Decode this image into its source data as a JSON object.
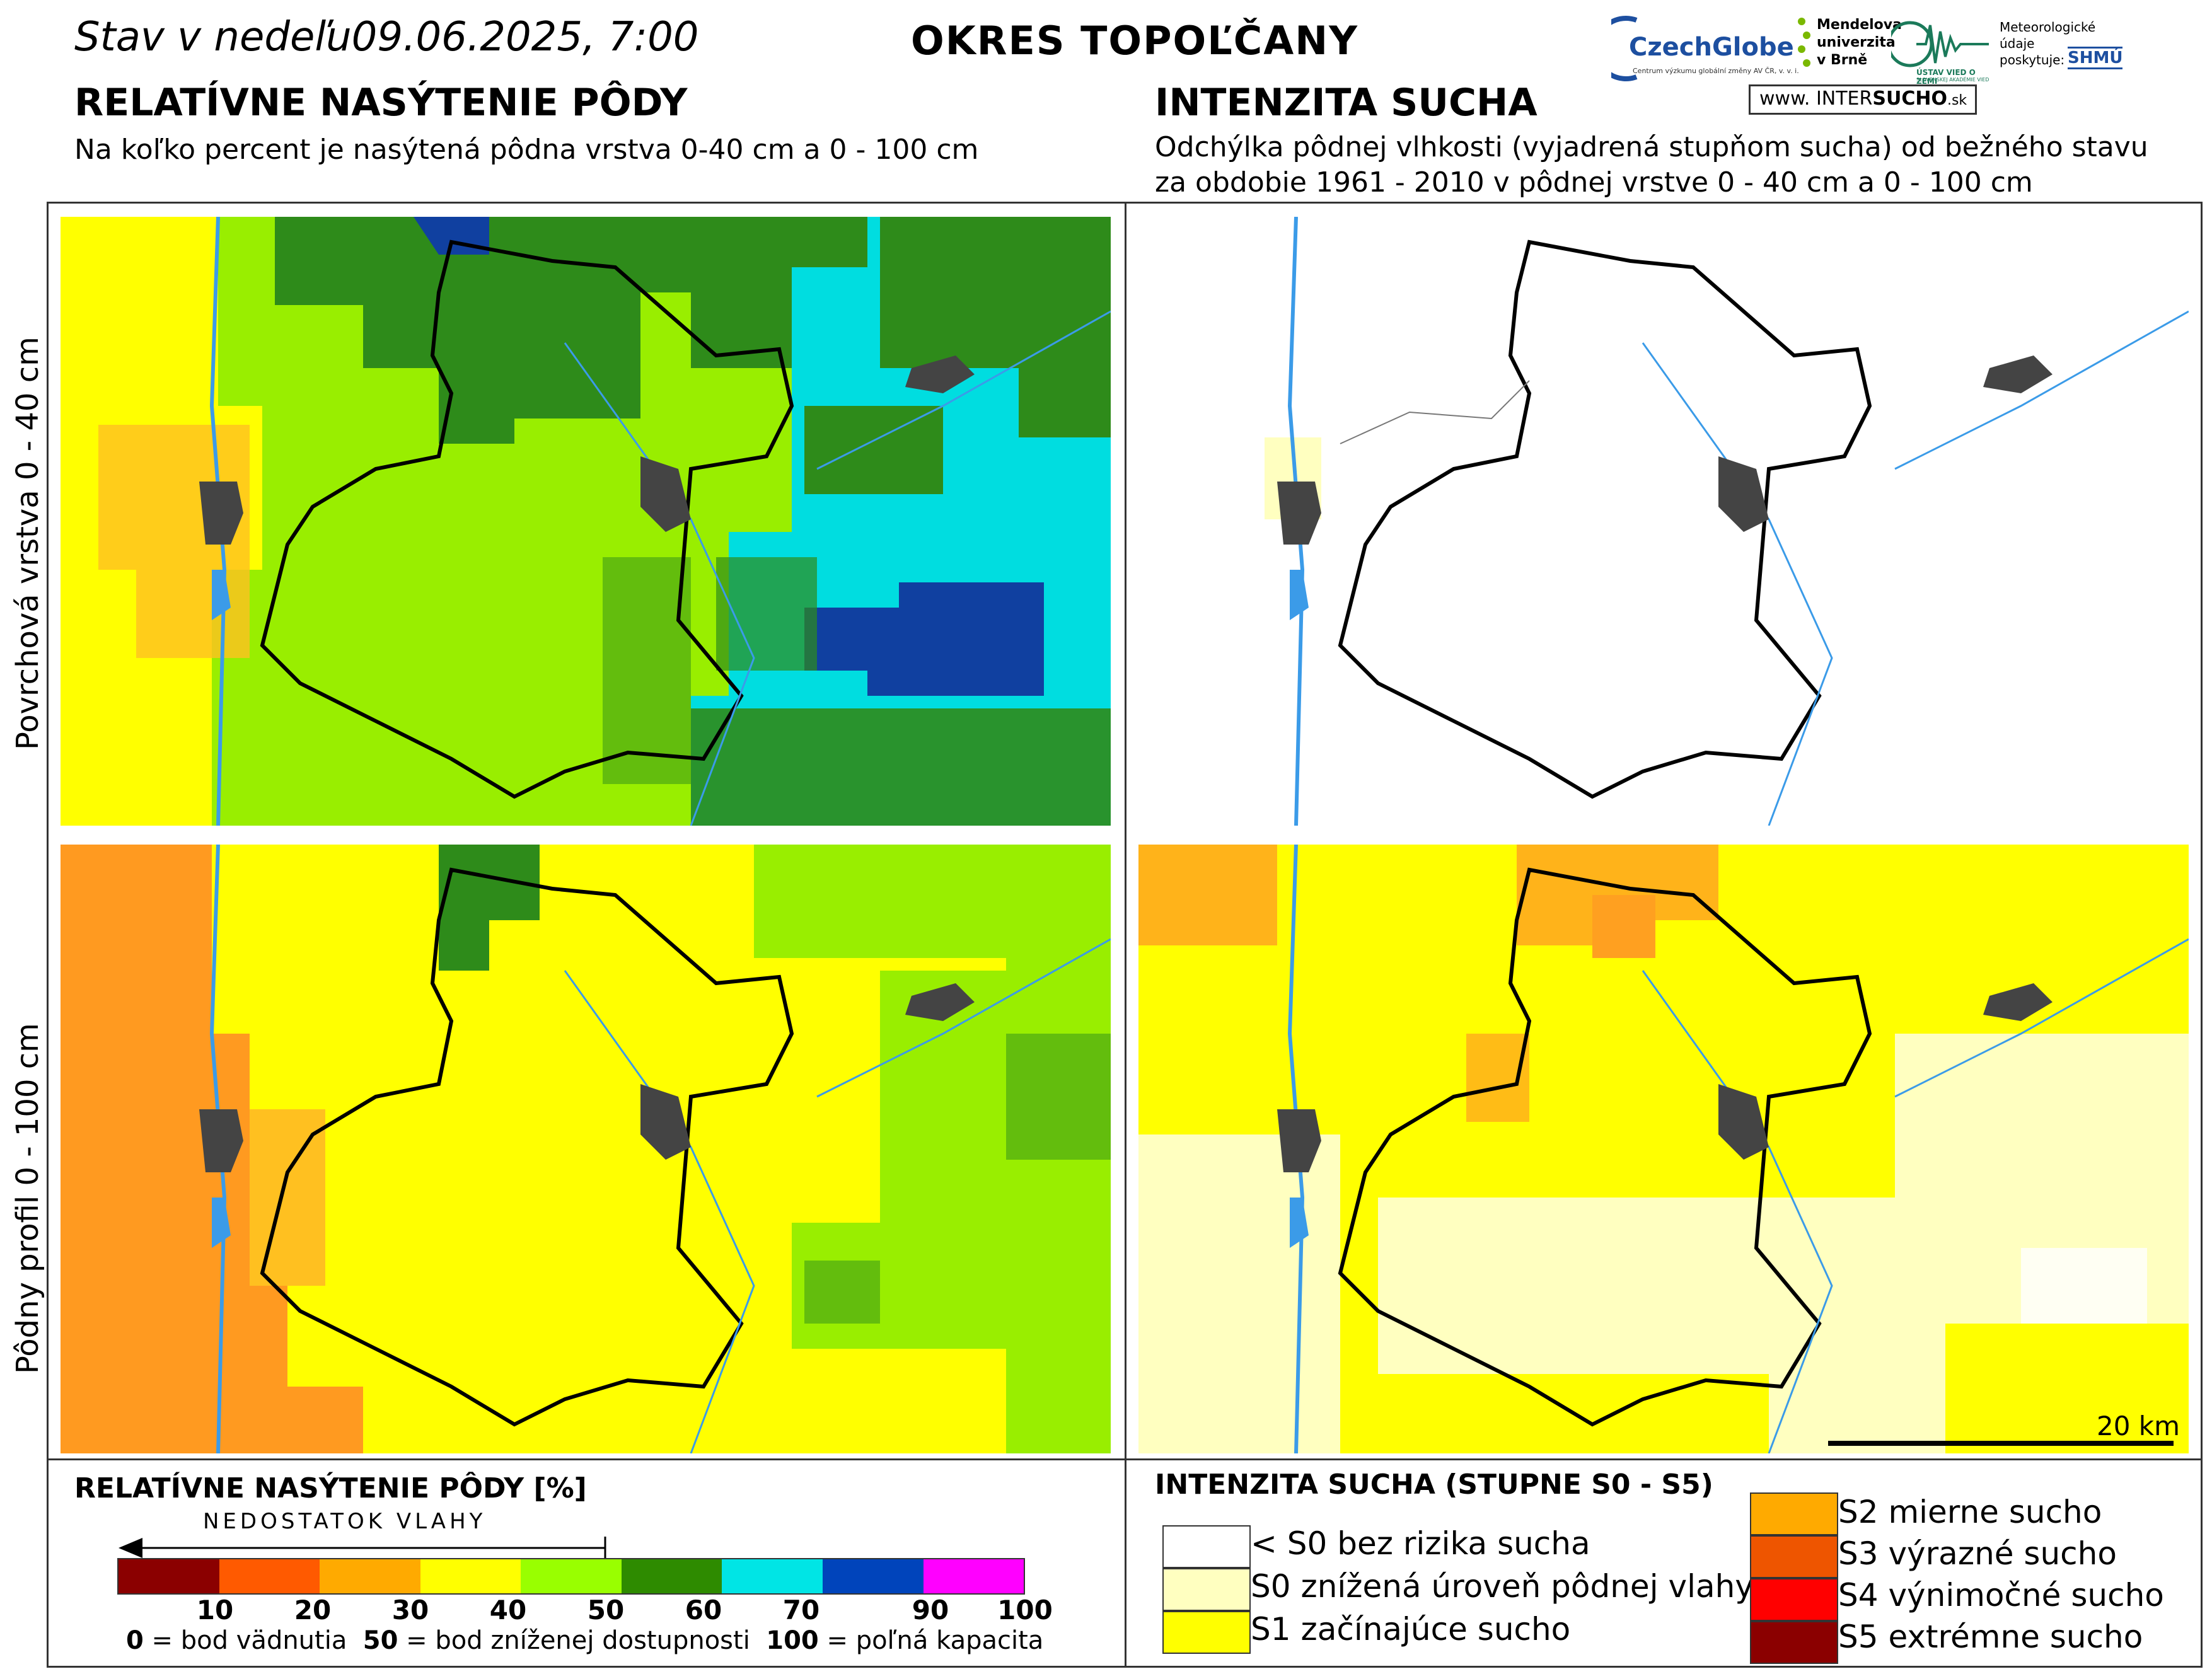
{
  "header": {
    "date": "Stav v nedeľu09.06.2025, 7:00",
    "district": "OKRES  TOPOĽČANY"
  },
  "left": {
    "title": "RELATÍVNE NASÝTENIE PÔDY",
    "subtitle": "Na koľko percent je nasýtená pôdna vrstva 0-40 cm a 0 - 100 cm"
  },
  "right": {
    "title": "INTENZITA SUCHA",
    "subtitle_line1": "Odchýlka pôdnej vlhkosti (vyjadrená stupňom sucha) od bežného stavu",
    "subtitle_line2": "za obdobie 1961 - 2010 v pôdnej vrstve 0 - 40 cm a 0 - 100 cm"
  },
  "rows": {
    "top": "Povrchová vrstva 0 - 40 cm",
    "bottom": "Pôdny profil 0 - 100 cm"
  },
  "scalebar": "20 km",
  "logos": {
    "czechglobe": "CzechGlobe",
    "czechglobe_sub": "Centrum výzkumu globální změny AV ČR, v. v. i.",
    "mendel_1": "Mendelova",
    "mendel_2": "univerzita",
    "mendel_3": "v Brně",
    "uvz": "ÚSTAV VIED O ZEMI",
    "uvz_sub": "SLOVENSKEJ AKADÉMIE VIED",
    "meteo_1": "Meteorologické",
    "meteo_2": "údaje",
    "meteo_3": "poskytuje:",
    "shmu": "SHMÚ",
    "intersucho_www": "www.",
    "intersucho_inter": "INTER",
    "intersucho_sucho": "SUCHO",
    "intersucho_sk": ".sk"
  },
  "legend_saturation": {
    "title": "RELATÍVNE NASÝTENIE PÔDY [%]",
    "arrow_label": "NEDOSTATOK VLAHY",
    "colors": [
      "#8b0000",
      "#ff5a00",
      "#ffaa00",
      "#ffff00",
      "#99ff00",
      "#2e8b00",
      "#00e5e5",
      "#0044bb",
      "#ff00ff"
    ],
    "ticks": [
      "10",
      "20",
      "30",
      "40",
      "50",
      "60",
      "70",
      "90",
      "100"
    ],
    "note_0_val": "0",
    "note_0_text": " = bod vädnutia  ",
    "note_50_val": "50",
    "note_50_text": " = bod zníženej dostupnosti  ",
    "note_100_val": "100",
    "note_100_text": " = poľná kapacita"
  },
  "legend_drought": {
    "title": "INTENZITA SUCHA (STUPNE S0 - S5)",
    "items": [
      {
        "label": "< S0 bez rizika sucha",
        "color": "#ffffff"
      },
      {
        "label": "S0 znížená úroveň pôdnej vlahy",
        "color": "#ffffc0"
      },
      {
        "label": "S1 začínajúce sucho",
        "color": "#ffff00"
      },
      {
        "label": "S2 mierne sucho",
        "color": "#ffaa00"
      },
      {
        "label": "S3 výrazné sucho",
        "color": "#ee5500"
      },
      {
        "label": "S4 výnimočné sucho",
        "color": "#ff0000"
      },
      {
        "label": "S5 extrémne sucho",
        "color": "#8b0000"
      }
    ]
  }
}
